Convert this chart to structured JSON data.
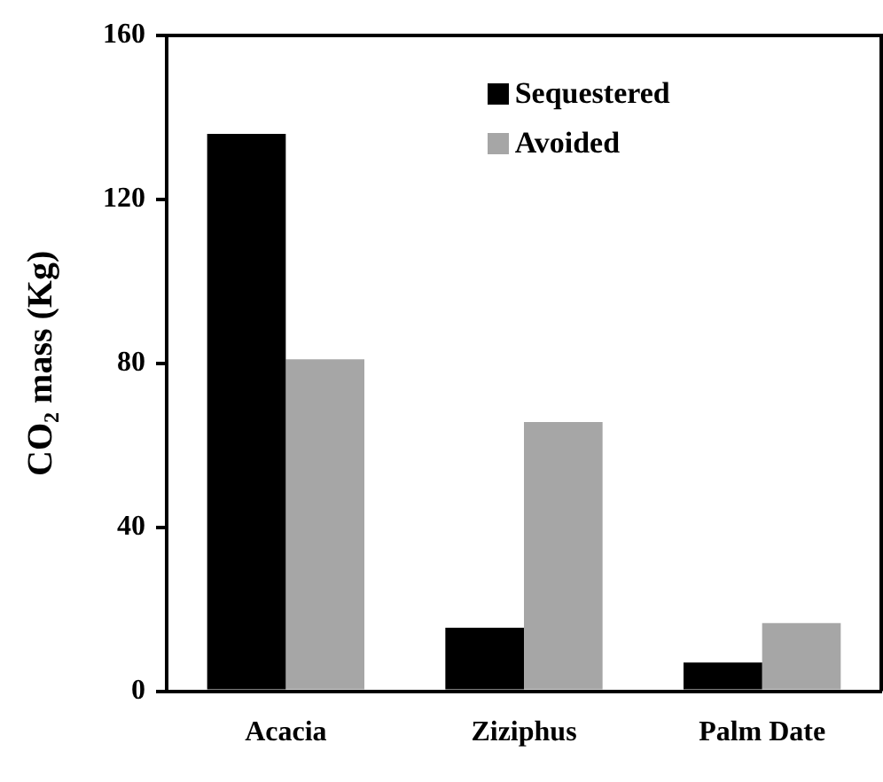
{
  "chart_data": {
    "type": "bar",
    "ylabel": "CO₂ mass (Kg)",
    "categories": [
      "Acacia",
      "Ziziphus",
      "Palm Date"
    ],
    "series": [
      {
        "name": "Sequestered",
        "color": "#000000",
        "values": [
          136,
          15.5,
          7
        ]
      },
      {
        "name": "Avoided",
        "color": "#a6a6a6",
        "values": [
          81,
          65.7,
          16.6
        ]
      }
    ],
    "ylim": [
      0,
      160
    ],
    "yticks": [
      0,
      40,
      80,
      120,
      160
    ],
    "grid": false,
    "legend": "top right"
  }
}
